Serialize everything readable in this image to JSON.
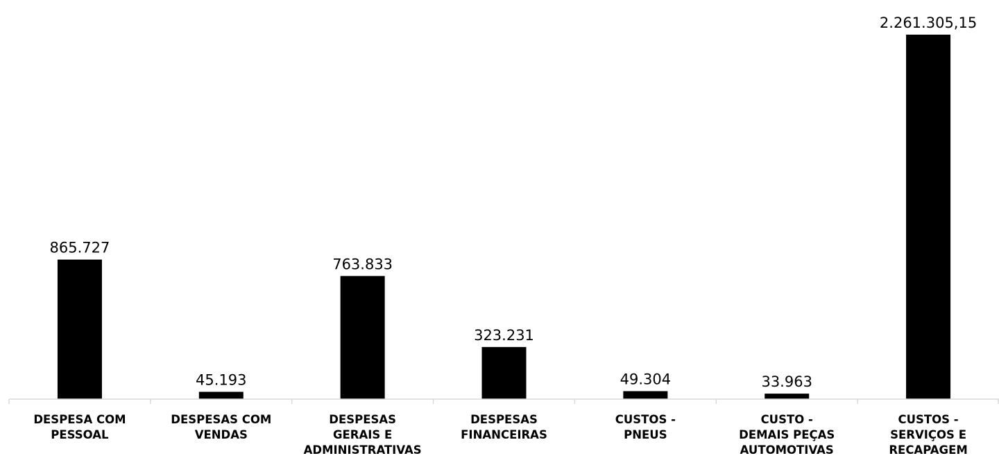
{
  "chart_data": {
    "type": "bar",
    "categories": [
      [
        "DESPESA COM",
        "PESSOAL"
      ],
      [
        "DESPESAS COM",
        "VENDAS"
      ],
      [
        "DESPESAS",
        "GERAIS E",
        "ADMINISTRATIVAS"
      ],
      [
        "DESPESAS",
        "FINANCEIRAS"
      ],
      [
        "CUSTOS -",
        "PNEUS"
      ],
      [
        "CUSTO -",
        "DEMAIS PEÇAS",
        "AUTOMOTIVAS"
      ],
      [
        "CUSTOS -",
        "SERVIÇOS E",
        "RECAPAGEM"
      ]
    ],
    "values": [
      865727,
      45193,
      763833,
      323231,
      49304,
      33963,
      2261305.15
    ],
    "value_labels": [
      "865.727",
      "45.193",
      "763.833",
      "323.231",
      "49.304",
      "33.963",
      "2.261.305,15"
    ],
    "title": "",
    "xlabel": "",
    "ylabel": "",
    "ylim": [
      0,
      2261305.15
    ],
    "grid": false,
    "colors": {
      "bar": "#000000",
      "axis": "#d9d9d9",
      "text": "#000000"
    }
  }
}
